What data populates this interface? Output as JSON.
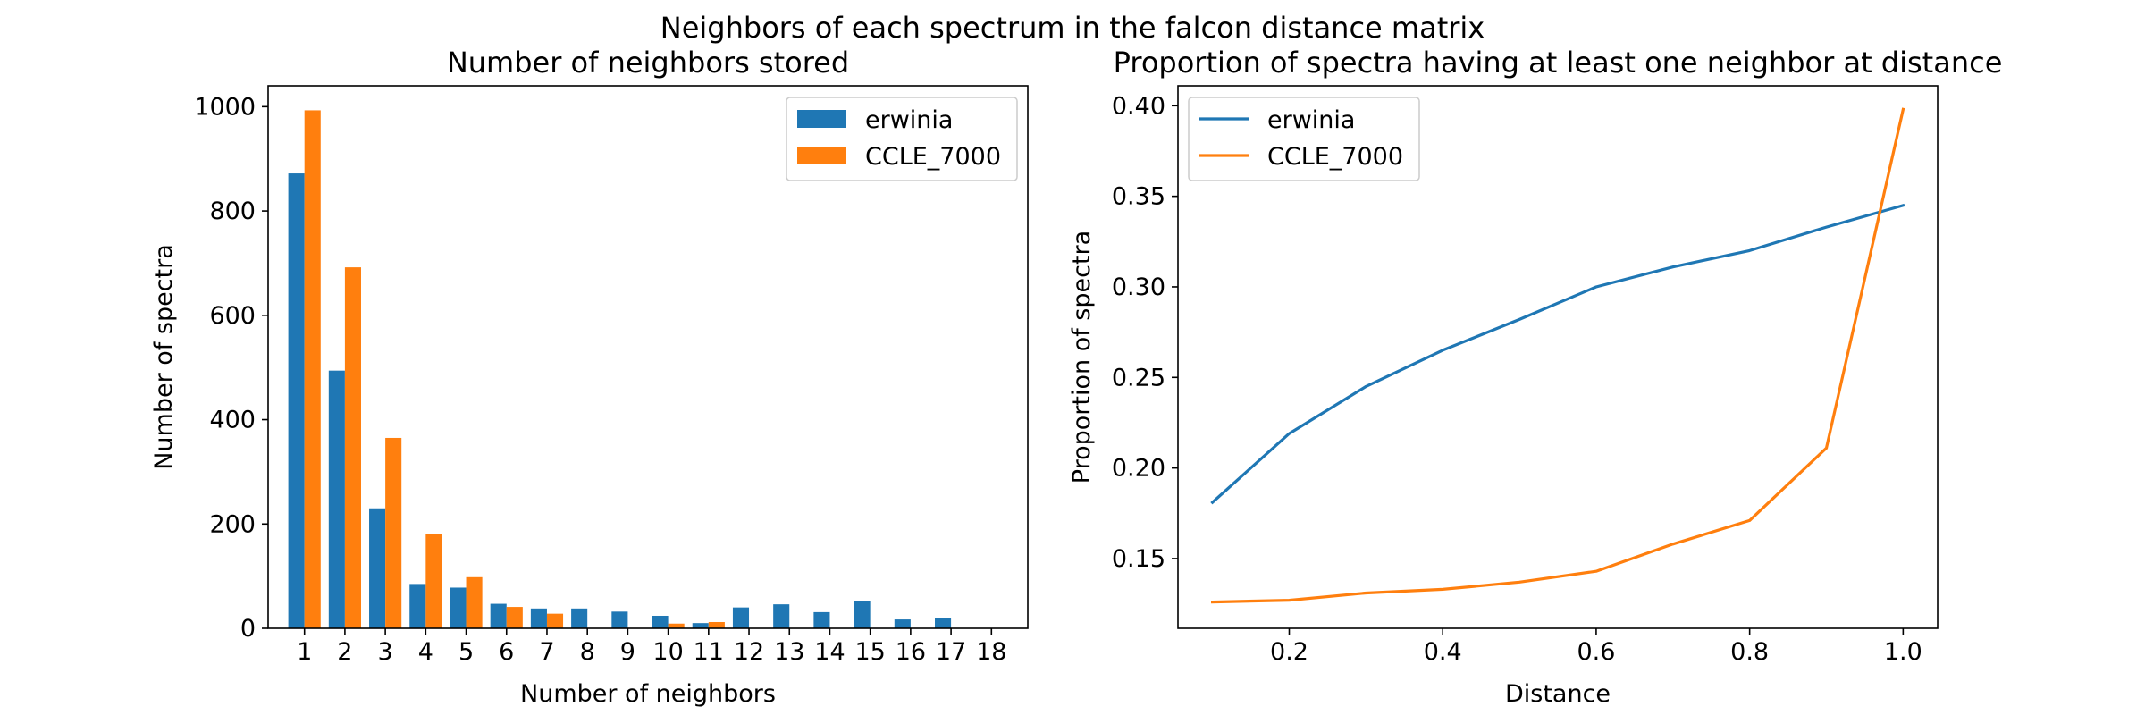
{
  "figure": {
    "suptitle": "Neighbors of each spectrum in the falcon distance matrix"
  },
  "chart_data": [
    {
      "type": "bar",
      "title": "Number of neighbors stored",
      "xlabel": "Number of neighbors",
      "ylabel": "Number of spectra",
      "categories": [
        "1",
        "2",
        "3",
        "4",
        "5",
        "6",
        "7",
        "8",
        "9",
        "10",
        "11",
        "12",
        "13",
        "14",
        "15",
        "16",
        "17",
        "18"
      ],
      "series": [
        {
          "name": "erwinia",
          "color": "#1f77b4",
          "values": [
            872,
            494,
            230,
            85,
            78,
            47,
            38,
            38,
            32,
            24,
            10,
            40,
            46,
            31,
            53,
            17,
            19,
            0
          ]
        },
        {
          "name": "CCLE_7000",
          "color": "#ff7f0e",
          "values": [
            993,
            692,
            365,
            180,
            98,
            41,
            28,
            0,
            0,
            9,
            12,
            0,
            0,
            0,
            0,
            0,
            0,
            0
          ]
        }
      ],
      "ylim": [
        0,
        1040
      ],
      "yticks": [
        0,
        200,
        400,
        600,
        800,
        1000
      ],
      "legend": "upper-right",
      "grid": false
    },
    {
      "type": "line",
      "title": "Proportion of spectra having at least one neighbor at distance",
      "xlabel": "Distance",
      "ylabel": "Proportion of spectra",
      "x": [
        0.1,
        0.2,
        0.3,
        0.4,
        0.5,
        0.6,
        0.7,
        0.8,
        0.9,
        1.0
      ],
      "series": [
        {
          "name": "erwinia",
          "color": "#1f77b4",
          "values": [
            0.181,
            0.219,
            0.245,
            0.265,
            0.282,
            0.3,
            0.311,
            0.32,
            0.333,
            0.345
          ]
        },
        {
          "name": "CCLE_7000",
          "color": "#ff7f0e",
          "values": [
            0.126,
            0.127,
            0.131,
            0.133,
            0.137,
            0.143,
            0.158,
            0.171,
            0.211,
            0.398
          ]
        }
      ],
      "xlim": [
        0.055,
        1.045
      ],
      "ylim": [
        0.1115,
        0.411
      ],
      "xticks": [
        0.2,
        0.4,
        0.6,
        0.8,
        1.0
      ],
      "xtick_labels": [
        "0.2",
        "0.4",
        "0.6",
        "0.8",
        "1.0"
      ],
      "yticks": [
        0.15,
        0.2,
        0.25,
        0.3,
        0.35,
        0.4
      ],
      "ytick_labels": [
        "0.15",
        "0.20",
        "0.25",
        "0.30",
        "0.35",
        "0.40"
      ],
      "legend": "upper-left",
      "grid": false
    }
  ]
}
